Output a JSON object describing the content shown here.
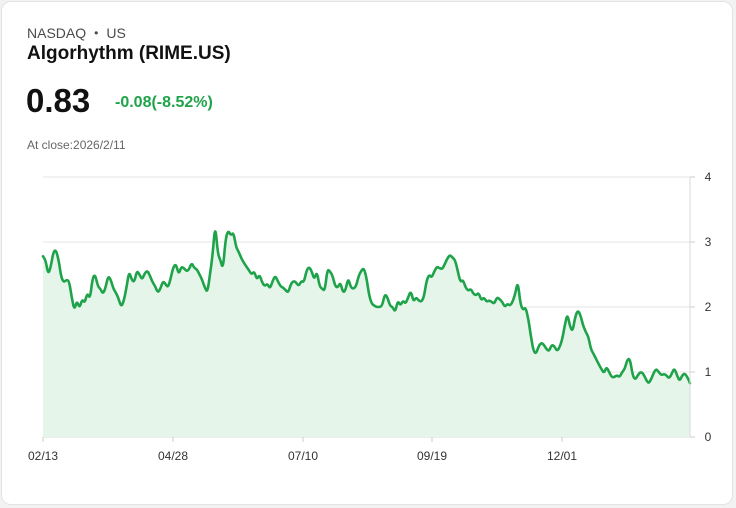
{
  "header": {
    "exchange": "NASDAQ",
    "separator": "•",
    "region": "US",
    "name": "Algorhythm (RIME.US)"
  },
  "quote": {
    "price": "0.83",
    "change": "-0.08(-8.52%)",
    "close_label": "At close:2026/2/11"
  },
  "colors": {
    "line": "#1fa34a",
    "fill": "#e6f5ea",
    "grid": "#e6e6e6",
    "text": "#111111"
  },
  "chart_data": {
    "type": "area",
    "title": "",
    "xlabel": "",
    "ylabel": "",
    "ylim": [
      0,
      4
    ],
    "yticks": [
      0,
      1,
      2,
      3,
      4
    ],
    "xticks": [
      "02/13",
      "04/28",
      "07/10",
      "09/19",
      "12/01"
    ],
    "grid": true,
    "y_axis_position": "right",
    "series": [
      {
        "values": [
          2.78,
          2.72,
          2.5,
          2.62,
          2.85,
          2.88,
          2.72,
          2.45,
          2.38,
          2.42,
          2.4,
          2.15,
          1.95,
          2.1,
          1.98,
          2.12,
          2.06,
          2.22,
          2.12,
          2.45,
          2.5,
          2.32,
          2.28,
          2.2,
          2.3,
          2.48,
          2.42,
          2.28,
          2.22,
          2.12,
          2.0,
          2.1,
          2.3,
          2.55,
          2.42,
          2.38,
          2.56,
          2.5,
          2.42,
          2.52,
          2.56,
          2.48,
          2.38,
          2.32,
          2.22,
          2.28,
          2.4,
          2.35,
          2.3,
          2.45,
          2.62,
          2.66,
          2.5,
          2.62,
          2.6,
          2.55,
          2.58,
          2.68,
          2.6,
          2.58,
          2.5,
          2.42,
          2.3,
          2.22,
          2.5,
          2.8,
          3.28,
          2.82,
          2.72,
          2.58,
          3.05,
          3.18,
          3.1,
          3.15,
          2.92,
          2.85,
          2.75,
          2.68,
          2.62,
          2.56,
          2.5,
          2.55,
          2.42,
          2.5,
          2.38,
          2.32,
          2.36,
          2.28,
          2.4,
          2.48,
          2.4,
          2.32,
          2.3,
          2.26,
          2.22,
          2.35,
          2.4,
          2.38,
          2.32,
          2.4,
          2.38,
          2.56,
          2.62,
          2.55,
          2.42,
          2.55,
          2.32,
          2.28,
          2.25,
          2.58,
          2.55,
          2.48,
          2.32,
          2.3,
          2.38,
          2.22,
          2.26,
          2.45,
          2.3,
          2.28,
          2.32,
          2.48,
          2.56,
          2.6,
          2.45,
          2.18,
          2.05,
          2.02,
          2.0,
          2.0,
          2.02,
          2.2,
          2.15,
          2.02,
          2.0,
          1.92,
          2.1,
          2.02,
          2.1,
          2.05,
          2.15,
          2.25,
          2.08,
          2.15,
          2.1,
          2.08,
          2.15,
          2.4,
          2.5,
          2.45,
          2.55,
          2.62,
          2.6,
          2.58,
          2.66,
          2.75,
          2.8,
          2.76,
          2.72,
          2.55,
          2.38,
          2.42,
          2.3,
          2.25,
          2.28,
          2.2,
          2.18,
          2.22,
          2.1,
          2.15,
          2.08,
          2.1,
          2.08,
          2.05,
          2.15,
          2.12,
          2.08,
          2.0,
          2.05,
          2.02,
          2.08,
          2.2,
          2.4,
          2.05,
          1.95,
          2.0,
          1.82,
          1.55,
          1.32,
          1.28,
          1.4,
          1.45,
          1.42,
          1.35,
          1.32,
          1.42,
          1.4,
          1.32,
          1.38,
          1.5,
          1.72,
          1.9,
          1.7,
          1.62,
          1.85,
          1.95,
          1.88,
          1.72,
          1.62,
          1.55,
          1.35,
          1.28,
          1.2,
          1.12,
          1.05,
          0.98,
          1.08,
          1.0,
          0.92,
          0.92,
          0.95,
          0.92,
          1.0,
          1.05,
          1.2,
          1.2,
          0.95,
          0.88,
          0.95,
          1.0,
          0.98,
          0.9,
          0.82,
          0.88,
          0.98,
          1.05,
          1.0,
          0.95,
          0.97,
          0.95,
          0.9,
          0.97,
          1.06,
          0.95,
          0.86,
          0.95,
          0.98,
          0.92,
          0.83
        ]
      }
    ]
  }
}
